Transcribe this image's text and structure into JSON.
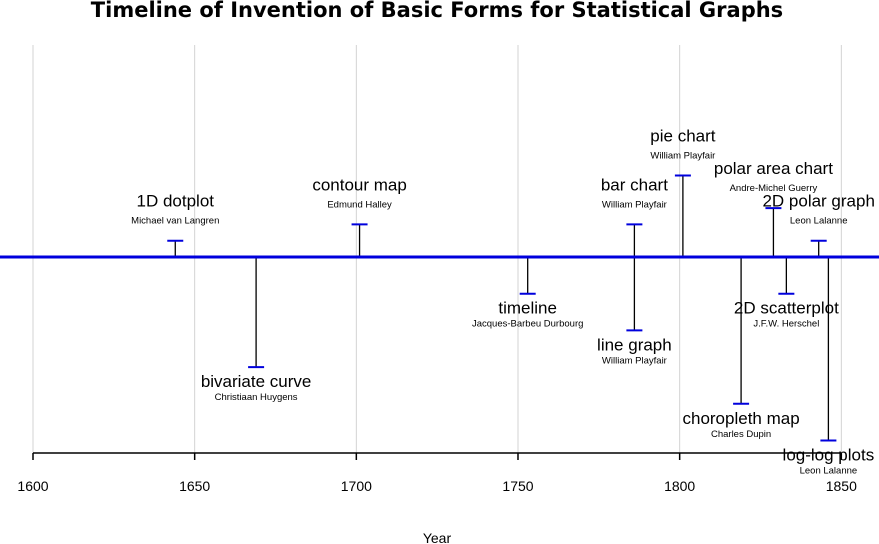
{
  "chart_data": {
    "type": "timeline",
    "title": "Timeline of Invention of Basic Forms for Statistical Graphs",
    "xlabel": "Year",
    "xlim": [
      1600,
      1860
    ],
    "x_ticks": [
      1600,
      1650,
      1700,
      1750,
      1800,
      1850
    ],
    "grid": true,
    "colors": {
      "timeline": "#0000dd",
      "markers": "#0000dd",
      "stems": "#000000",
      "grid": "#d3d3d3"
    },
    "events": [
      {
        "year": 1644,
        "name": "1D dotplot",
        "inventor": "Michael van Langren",
        "side": "above",
        "level": 1
      },
      {
        "year": 1669,
        "name": "bivariate curve",
        "inventor": "Christiaan Huygens",
        "side": "below",
        "level": 3
      },
      {
        "year": 1701,
        "name": "contour map",
        "inventor": "Edmund Halley",
        "side": "above",
        "level": 2
      },
      {
        "year": 1753,
        "name": "timeline",
        "inventor": "Jacques-Barbeu Durbourg",
        "side": "below",
        "level": 1
      },
      {
        "year": 1786,
        "name": "bar chart",
        "inventor": "William Playfair",
        "side": "above",
        "level": 2
      },
      {
        "year": 1786,
        "name": "line graph",
        "inventor": "William Playfair",
        "side": "below",
        "level": 2
      },
      {
        "year": 1801,
        "name": "pie chart",
        "inventor": "William Playfair",
        "side": "above",
        "level": 5
      },
      {
        "year": 1819,
        "name": "choropleth map",
        "inventor": "Charles Dupin",
        "side": "below",
        "level": 4
      },
      {
        "year": 1829,
        "name": "polar area chart",
        "inventor": "Andre-Michel Guerry",
        "side": "above",
        "level": 3
      },
      {
        "year": 1833,
        "name": "2D scatterplot",
        "inventor": "J.F.W. Herschel",
        "side": "below",
        "level": 1
      },
      {
        "year": 1843,
        "name": "2D polar graph",
        "inventor": "Leon Lalanne",
        "side": "above",
        "level": 1
      },
      {
        "year": 1846,
        "name": "log-log plots",
        "inventor": "Leon Lalanne",
        "side": "below",
        "level": 5
      }
    ]
  }
}
